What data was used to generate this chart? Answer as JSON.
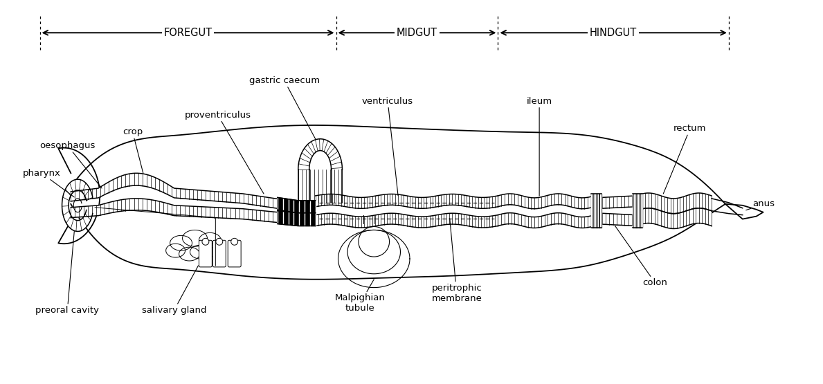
{
  "bg_color": "#ffffff",
  "foregut_label": "FOREGUT",
  "midgut_label": "MIDGUT",
  "hindgut_label": "HINDGUT",
  "fig_width": 11.89,
  "fig_height": 5.55,
  "label_fontsize": 9.5,
  "header_fontsize": 10.5
}
